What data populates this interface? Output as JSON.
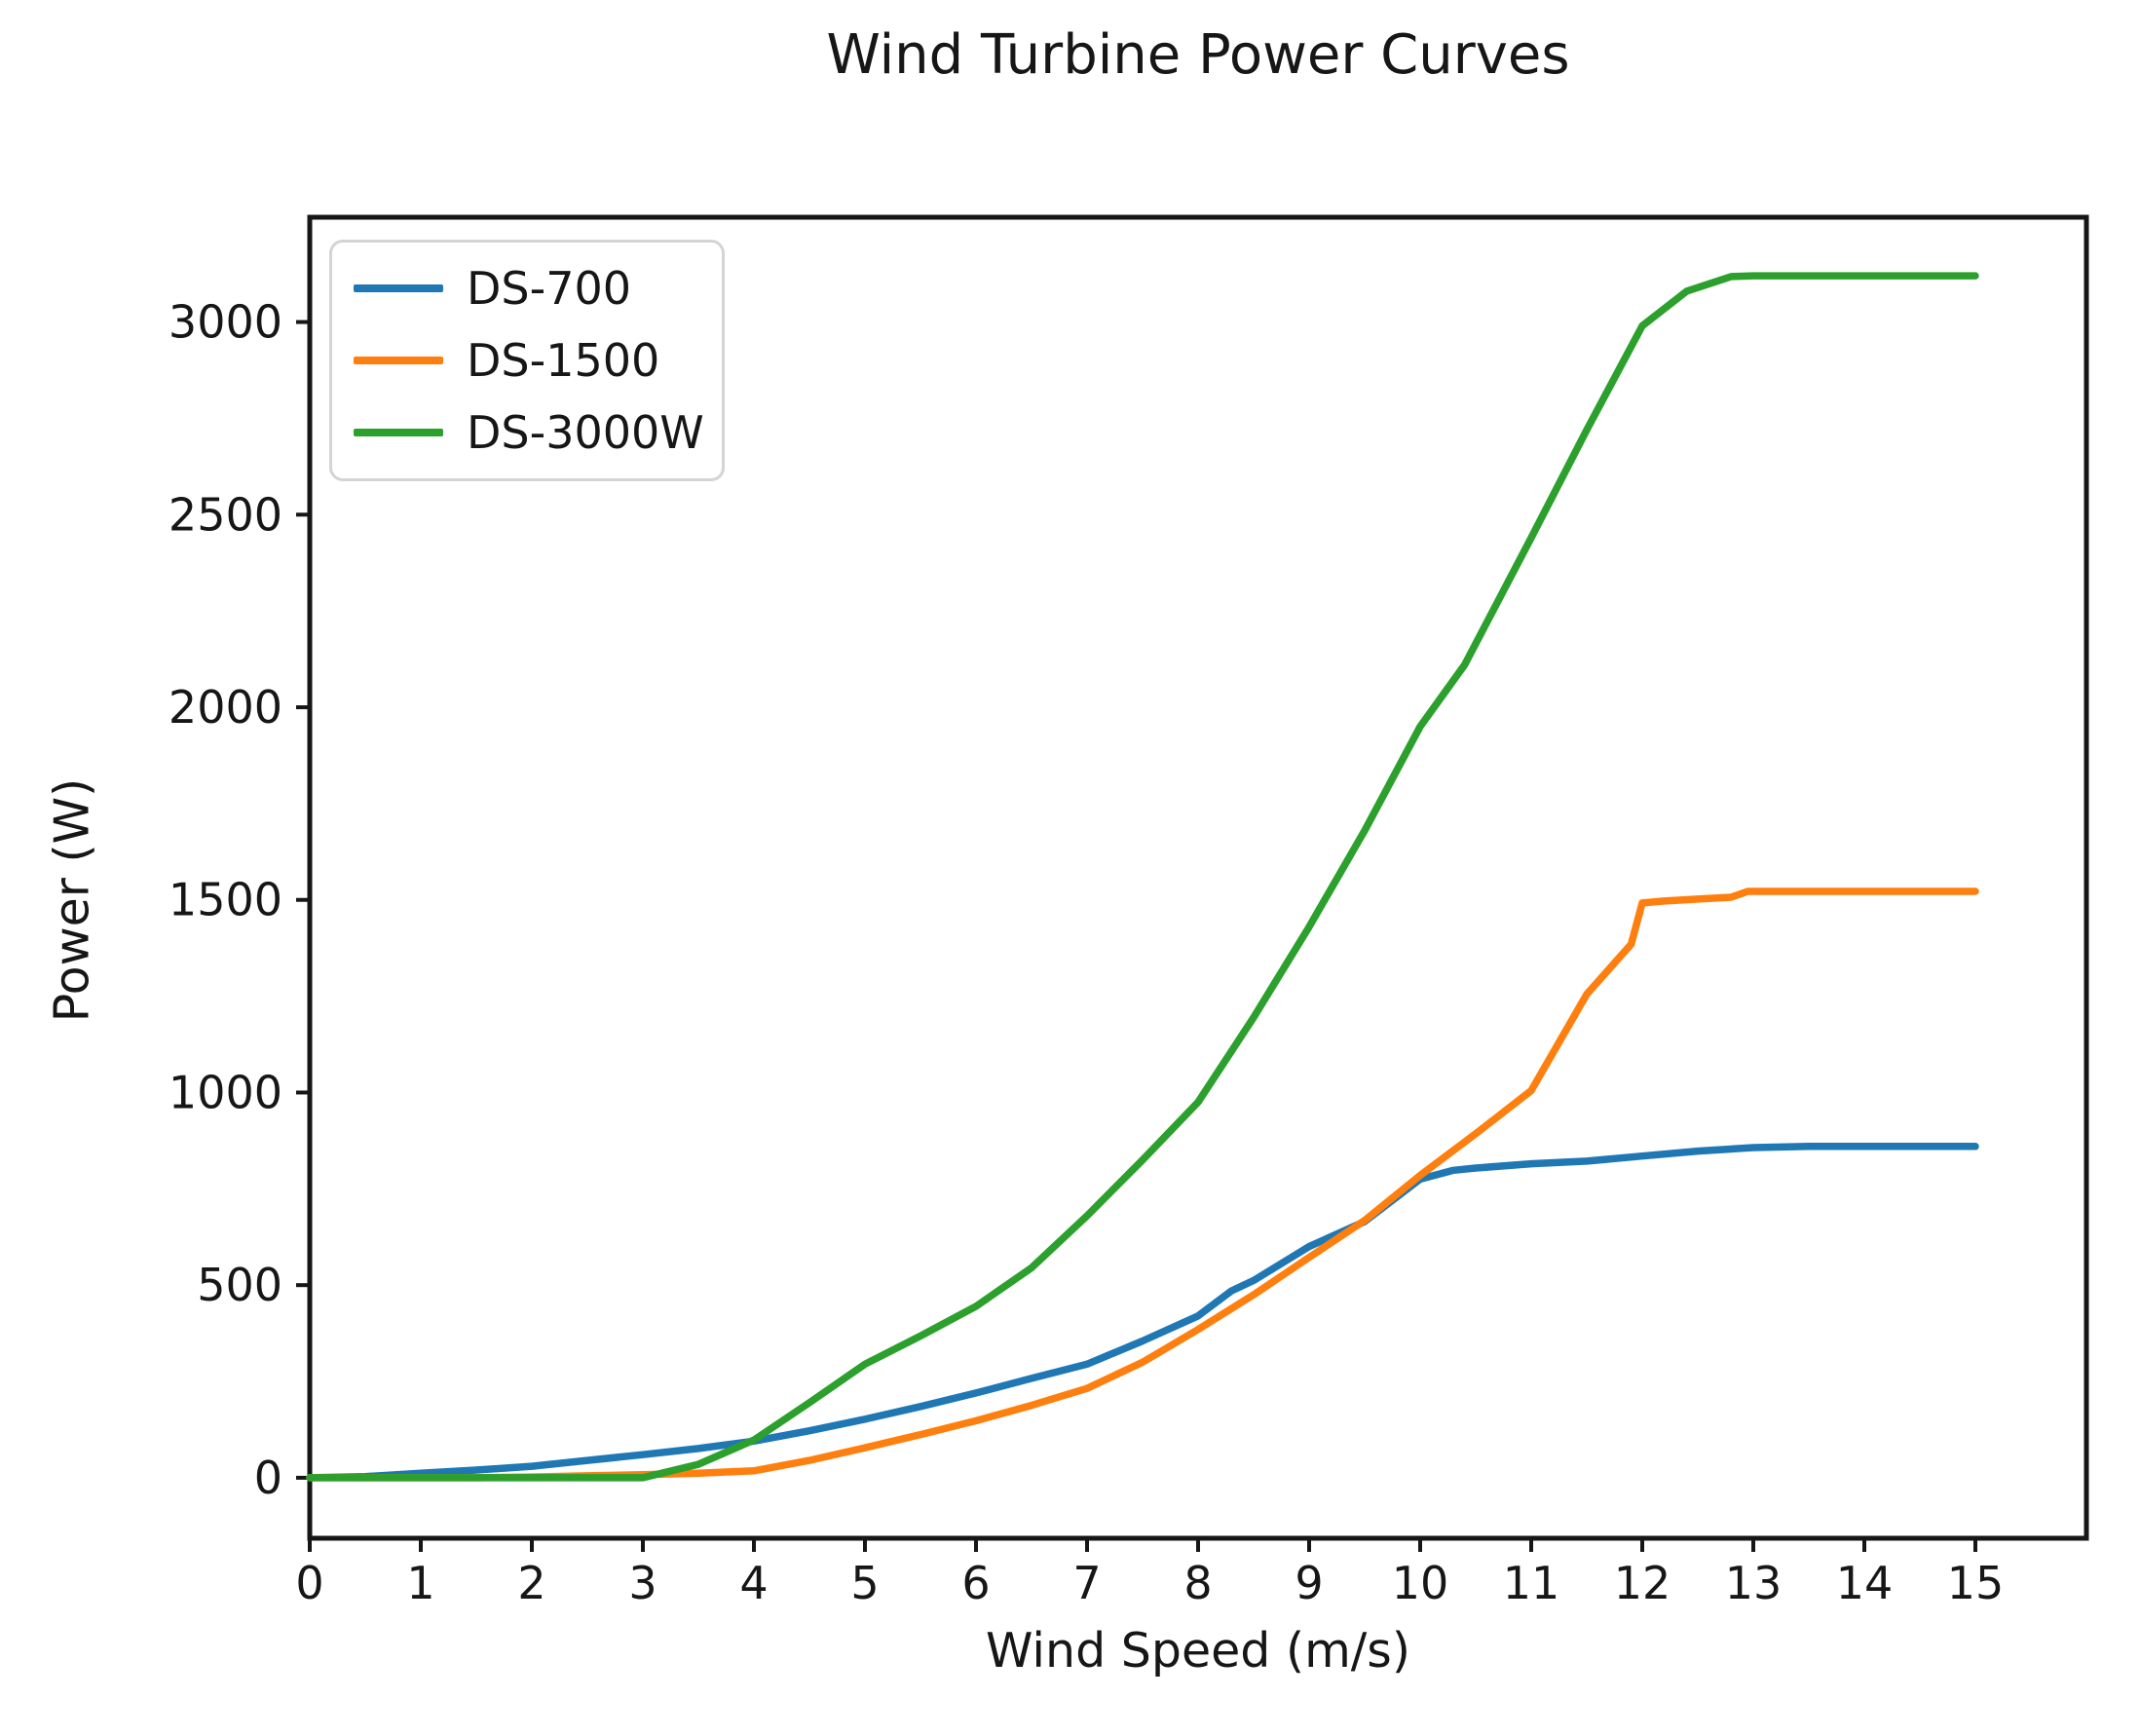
{
  "chart_data": {
    "type": "line",
    "title": "Wind Turbine Power Curves",
    "xlabel": "Wind Speed (m/s)",
    "ylabel": "Power (W)",
    "xlim": [
      0,
      16
    ],
    "ylim": [
      -157,
      3272
    ],
    "x_ticks": [
      0,
      1,
      2,
      3,
      4,
      5,
      6,
      7,
      8,
      9,
      10,
      11,
      12,
      13,
      14,
      15
    ],
    "y_ticks": [
      0,
      500,
      1000,
      1500,
      2000,
      2500,
      3000
    ],
    "grid": false,
    "legend_position": "upper left",
    "series": [
      {
        "name": "DS-700",
        "color": "#1f77b4",
        "x": [
          0,
          0.5,
          1,
          1.5,
          2,
          2.5,
          3,
          3.5,
          4,
          4.5,
          5,
          5.5,
          6,
          6.5,
          7,
          7.5,
          8,
          8.3,
          8.5,
          9,
          9.5,
          10,
          10.3,
          10.5,
          11,
          11.5,
          12,
          12.5,
          13,
          13.5,
          14,
          14.5,
          15
        ],
        "y": [
          0,
          3,
          12,
          20,
          30,
          45,
          60,
          76,
          95,
          122,
          152,
          185,
          220,
          258,
          295,
          355,
          420,
          485,
          512,
          600,
          665,
          775,
          798,
          804,
          815,
          822,
          835,
          848,
          857,
          860,
          860,
          860,
          860
        ]
      },
      {
        "name": "DS-1500",
        "color": "#ff7f0e",
        "x": [
          0,
          0.5,
          1,
          1.5,
          2,
          2.5,
          3,
          3.5,
          4,
          4.5,
          5,
          5.5,
          6,
          6.5,
          7,
          7.5,
          8,
          8.5,
          9,
          9.5,
          10,
          10.5,
          11,
          11.5,
          11.9,
          12,
          12.2,
          12.5,
          12.8,
          12.95,
          13,
          13.5,
          14,
          14.5,
          15
        ],
        "y": [
          0,
          0,
          0,
          0,
          2,
          5,
          8,
          12,
          18,
          45,
          78,
          112,
          148,
          188,
          232,
          300,
          385,
          475,
          572,
          668,
          785,
          893,
          1005,
          1255,
          1385,
          1492,
          1497,
          1502,
          1507,
          1522,
          1522,
          1522,
          1522,
          1522,
          1522
        ]
      },
      {
        "name": "DS-3000W",
        "color": "#2ca02c",
        "x": [
          0,
          0.5,
          1,
          1.5,
          2,
          2.5,
          3,
          3.5,
          4,
          4.5,
          5,
          5.5,
          6,
          6.5,
          7,
          7.5,
          8,
          8.5,
          9,
          9.5,
          10,
          10.4,
          11,
          11.5,
          12,
          12.4,
          12.8,
          13,
          13.5,
          14,
          14.5,
          15
        ],
        "y": [
          0,
          0,
          0,
          0,
          0,
          0,
          0,
          35,
          98,
          195,
          295,
          368,
          445,
          545,
          680,
          825,
          975,
          1195,
          1430,
          1680,
          1950,
          2110,
          2440,
          2720,
          2990,
          3080,
          3118,
          3120,
          3120,
          3120,
          3120,
          3120
        ]
      }
    ]
  }
}
